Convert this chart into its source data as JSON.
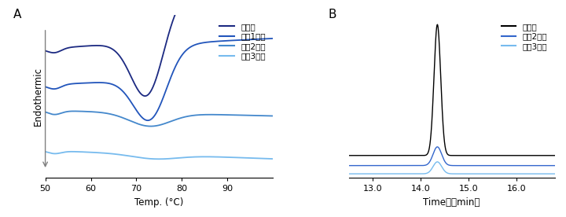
{
  "panel_A": {
    "title": "A",
    "xlabel": "Temp. (°C)",
    "ylabel": "Endothermic",
    "xlim": [
      50,
      100
    ],
    "x_ticks": [
      50,
      60,
      70,
      80,
      90
    ],
    "x_tick_labels": [
      "50",
      "60",
      "70",
      "80",
      "90"
    ],
    "colors": {
      "before": "#1c2a82",
      "wash1": "#2255bb",
      "wash2": "#4488cc",
      "wash3": "#77bbee"
    },
    "legend": [
      "洗浄前",
      "洗浄1回目",
      "洗浄2回目",
      "洗浄3回目"
    ]
  },
  "panel_B": {
    "title": "B",
    "xlabel": "Time　（min）",
    "xlim": [
      12.5,
      16.8
    ],
    "x_ticks": [
      13.0,
      14.0,
      15.0,
      16.0
    ],
    "x_tick_labels": [
      "13.0",
      "14.0",
      "15.0",
      "16.0"
    ],
    "colors": {
      "before": "#000000",
      "wash2": "#3366cc",
      "wash3": "#77bbee"
    },
    "legend": [
      "洗浄前",
      "洗浄2回目",
      "洗浄3回目"
    ]
  }
}
